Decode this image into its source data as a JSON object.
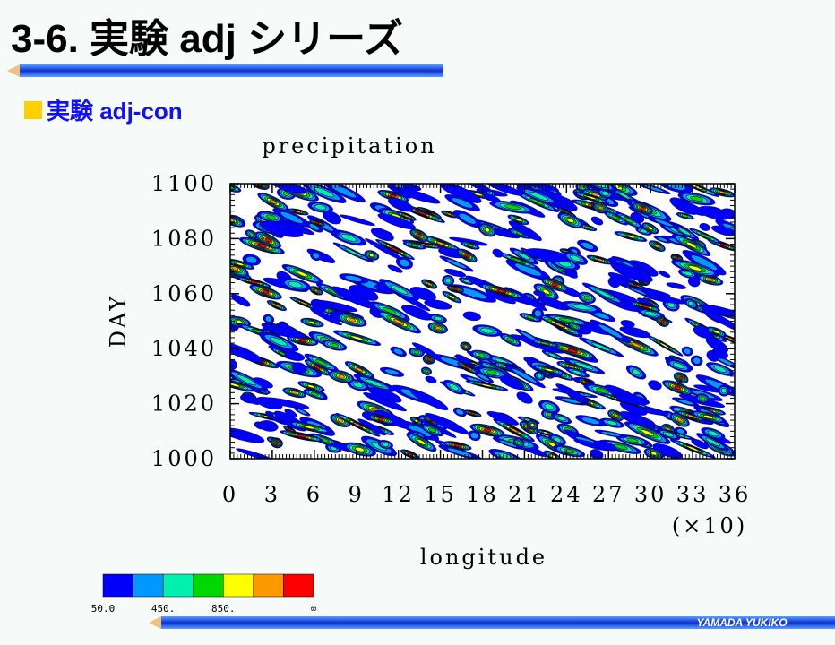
{
  "header": {
    "title": "3-6. 実験 adj シリーズ",
    "subtitle": "実験 adj-con"
  },
  "footer": {
    "author": "YAMADA YUKIKO"
  },
  "chart_data": {
    "type": "contour",
    "title": "precipitation",
    "xlabel": "longitude",
    "x_multiplier": "(×10)",
    "ylabel": "DAY",
    "xlim": [
      0,
      36
    ],
    "xticks": [
      0,
      3,
      6,
      9,
      12,
      15,
      18,
      21,
      24,
      27,
      30,
      33,
      36
    ],
    "ylim": [
      1000,
      1100
    ],
    "yticks": [
      1000,
      1020,
      1040,
      1060,
      1080,
      1100
    ],
    "levels": [
      50,
      250,
      450,
      650,
      850,
      1050,
      1250
    ],
    "colors": [
      "#0000ff",
      "#0099ff",
      "#00f0b0",
      "#00d800",
      "#ffff00",
      "#ff9900",
      "#ff0000"
    ],
    "colorbar_ticks": [
      {
        "value": 50,
        "label": "50.0"
      },
      {
        "value": 450,
        "label": "450."
      },
      {
        "value": 850,
        "label": "850."
      }
    ],
    "colorbar_end_label": "∞"
  }
}
